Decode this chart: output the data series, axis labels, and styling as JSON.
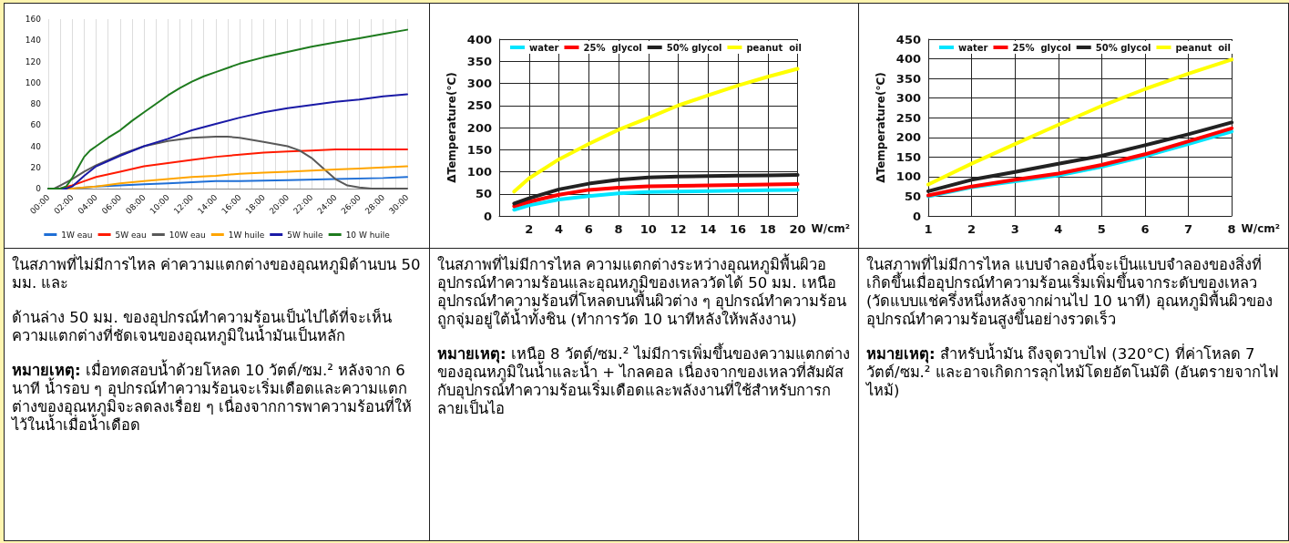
{
  "chart_data": [
    {
      "type": "line",
      "xlim": [
        0,
        30
      ],
      "xticks": [
        {
          "value": 0,
          "label": "00:00"
        },
        {
          "value": 1,
          "label": null
        },
        {
          "value": 2,
          "label": "02:00"
        },
        {
          "value": 3,
          "label": null
        },
        {
          "value": 4,
          "label": "04:00"
        },
        {
          "value": 5,
          "label": null
        },
        {
          "value": 6,
          "label": "06:00"
        },
        {
          "value": 7,
          "label": null
        },
        {
          "value": 8,
          "label": "08:00"
        },
        {
          "value": 9,
          "label": null
        },
        {
          "value": 10,
          "label": "10:00"
        },
        {
          "value": 11,
          "label": null
        },
        {
          "value": 12,
          "label": "12:00"
        },
        {
          "value": 13,
          "label": null
        },
        {
          "value": 14,
          "label": "14:00"
        },
        {
          "value": 15,
          "label": null
        },
        {
          "value": 16,
          "label": "16:00"
        },
        {
          "value": 17,
          "label": null
        },
        {
          "value": 18,
          "label": "18:00"
        },
        {
          "value": 19,
          "label": null
        },
        {
          "value": 20,
          "label": "20:00"
        },
        {
          "value": 21,
          "label": null
        },
        {
          "value": 22,
          "label": "22:00"
        },
        {
          "value": 23,
          "label": null
        },
        {
          "value": 24,
          "label": "24:00"
        },
        {
          "value": 25,
          "label": null
        },
        {
          "value": 26,
          "label": "26:00"
        },
        {
          "value": 27,
          "label": null
        },
        {
          "value": 28,
          "label": "28:00"
        },
        {
          "value": 29,
          "label": null
        },
        {
          "value": 30,
          "label": "30:00"
        }
      ],
      "ylim": [
        0,
        160
      ],
      "yticks": [
        0,
        20,
        40,
        60,
        80,
        100,
        120,
        140,
        160
      ],
      "grid": "x",
      "legend": "bottom",
      "marker": "none",
      "line_style": "solid",
      "series": [
        {
          "name": "1W eau",
          "color": "#1f6fd6",
          "x": [
            0,
            2,
            4,
            6,
            8,
            10,
            12,
            14,
            16,
            20,
            24,
            28,
            30
          ],
          "values": [
            0,
            0,
            2,
            3,
            4,
            5,
            6,
            7,
            7,
            8,
            9,
            10,
            11
          ]
        },
        {
          "name": "5W eau",
          "color": "#ff1a00",
          "x": [
            0,
            1,
            2,
            3,
            4,
            6,
            8,
            10,
            12,
            14,
            16,
            18,
            20,
            22,
            24,
            26,
            28,
            30
          ],
          "values": [
            0,
            0,
            3,
            7,
            11,
            16,
            21,
            24,
            27,
            30,
            32,
            34,
            35,
            36,
            37,
            37,
            37,
            37
          ]
        },
        {
          "name": "10W eau",
          "color": "#595959",
          "x": [
            0,
            0.5,
            1,
            2,
            3,
            4,
            5,
            6,
            8,
            10,
            12,
            14,
            15,
            16,
            18,
            20,
            21,
            22,
            23,
            24,
            25,
            26,
            27,
            30
          ],
          "values": [
            0,
            0,
            3,
            9,
            16,
            22,
            27,
            32,
            40,
            45,
            48,
            49,
            49,
            48,
            44,
            40,
            36,
            29,
            19,
            9,
            3,
            1,
            0,
            0
          ]
        },
        {
          "name": "1W huile",
          "color": "#ffa500",
          "x": [
            0,
            2,
            3,
            4,
            6,
            8,
            10,
            12,
            14,
            16,
            18,
            20,
            22,
            24,
            26,
            28,
            30
          ],
          "values": [
            0,
            0,
            1,
            2,
            5,
            7,
            9,
            11,
            12,
            14,
            15,
            16,
            17,
            18,
            19,
            20,
            21
          ]
        },
        {
          "name": "5W huile",
          "color": "#1a1aa6",
          "x": [
            0,
            1.5,
            2,
            3,
            4,
            5,
            6,
            8,
            10,
            12,
            14,
            16,
            18,
            20,
            22,
            24,
            26,
            28,
            30
          ],
          "values": [
            0,
            0,
            2,
            12,
            21,
            26,
            31,
            40,
            47,
            55,
            61,
            67,
            72,
            76,
            79,
            82,
            84,
            87,
            89
          ]
        },
        {
          "name": "10 W huile",
          "color": "#1e7b1e",
          "x": [
            0,
            1,
            1.5,
            2,
            2.5,
            3,
            3.5,
            4,
            5,
            6,
            7,
            8,
            9,
            10,
            11,
            12,
            13,
            14,
            16,
            18,
            20,
            22,
            24,
            26,
            28,
            30
          ],
          "values": [
            0,
            0,
            2,
            10,
            20,
            30,
            36,
            40,
            48,
            55,
            64,
            72,
            80,
            88,
            95,
            101,
            106,
            110,
            118,
            124,
            129,
            134,
            138,
            142,
            146,
            150
          ]
        }
      ],
      "annotations": [
        "ในสภาพที่ไม่มีการไหล ค่าความแตกต่างของอุณหภูมิด้านบน 50 มม. และ",
        "ด้านล่าง 50 มม. ของอุปกรณ์ทำความร้อนเป็นไปได้ที่จะเห็นความแตกต่างที่ชัดเจนของอุณหภูมิในน้ำมันเป็นหลัก",
        "หมายเหตุ: เมื่อทดสอบน้ำด้วยโหลด 10 วัตต์/ซม.² หลังจาก 6 นาที น้ำรอบ ๆ อุปกรณ์ทำความร้อนจะเริ่มเดือดและความแตกต่างของอุณหภูมิจะลดลงเรื่อย ๆ เนื่องจากการพาความร้อนที่ให้ไว้ในน้ำเมื่อน้ำเดือด"
      ]
    },
    {
      "type": "line",
      "xlabel": "W/cm²",
      "ylabel": "ΔTemperature(°C)",
      "xlim": [
        0,
        20
      ],
      "xticks": [
        2,
        4,
        6,
        8,
        10,
        12,
        14,
        16,
        18,
        20
      ],
      "ylim": [
        0,
        400
      ],
      "yticks": [
        0,
        50,
        100,
        150,
        200,
        250,
        300,
        350,
        400
      ],
      "grid": true,
      "legend": "top",
      "marker": "none",
      "line_style": "solid",
      "x": [
        1,
        2,
        4,
        6,
        8,
        10,
        12,
        14,
        16,
        18,
        20
      ],
      "series": [
        {
          "name": "water",
          "color": "#00e5ff",
          "values": [
            14,
            24,
            37,
            45,
            51,
            54,
            55,
            56,
            57,
            58,
            59
          ]
        },
        {
          "name": "25%  glycol",
          "color": "#ff0000",
          "values": [
            22,
            32,
            48,
            59,
            64,
            67,
            68,
            69,
            70,
            71,
            72
          ]
        },
        {
          "name": "50% glycol",
          "color": "#222222",
          "values": [
            28,
            40,
            60,
            73,
            82,
            87,
            89,
            90,
            91,
            92,
            93
          ]
        },
        {
          "name": "peanut  oil",
          "color": "#ffff00",
          "values": [
            55,
            85,
            128,
            163,
            195,
            222,
            250,
            273,
            295,
            315,
            333
          ]
        }
      ],
      "annotations": [
        "ในสภาพที่ไม่มีการไหล ความแตกต่างระหว่างอุณหภูมิพื้นผิวออุปกรณ์ทำความร้อนและอุณหภูมิของเหลววัดได้ 50 มม. เหนืออุปกรณ์ทำความร้อนที่โหลดบนพื้นผิวต่าง ๆ อุปกรณ์ทำความร้อนถูกจุ่มอยู่ใต้น้ำทั้งชิน (ทำการวัด 10 นาทีหลังให้พลังงาน)",
        "หมายเหตุ: เหนือ 8 วัตต์/ซม.² ไม่มีการเพิ่มขึ้นของความแตกต่างของอุณหภูมิในน้ำและน้ำ + ไกลคอล เนื่องจากของเหลวที่สัมผัสกับอุปกรณ์ทำความร้อนเริ่มเดือดและพลังงานที่ใช้สำหรับการกลายเป็นไอ"
      ]
    },
    {
      "type": "line",
      "xlabel": "W/cm²",
      "ylabel": "ΔTemperature(°C)",
      "xlim": [
        1,
        8
      ],
      "xticks": [
        1,
        2,
        3,
        4,
        5,
        6,
        7,
        8
      ],
      "ylim": [
        0,
        450
      ],
      "yticks": [
        0,
        50,
        100,
        150,
        200,
        250,
        300,
        350,
        400,
        450
      ],
      "grid": true,
      "legend": "top",
      "marker": "none",
      "line_style": "solid",
      "x": [
        1,
        2,
        3,
        4,
        5,
        6,
        7,
        8
      ],
      "series": [
        {
          "name": "water",
          "color": "#00e5ff",
          "values": [
            50,
            73,
            88,
            103,
            125,
            152,
            183,
            215
          ]
        },
        {
          "name": "25%  glycol",
          "color": "#ff0000",
          "values": [
            52,
            75,
            92,
            108,
            130,
            157,
            190,
            223
          ]
        },
        {
          "name": "50% glycol",
          "color": "#222222",
          "values": [
            63,
            92,
            112,
            133,
            153,
            180,
            208,
            238
          ]
        },
        {
          "name": "peanut  oil",
          "color": "#ffff00",
          "values": [
            80,
            133,
            183,
            232,
            280,
            323,
            362,
            398
          ]
        }
      ],
      "annotations": [
        "ในสภาพที่ไม่มีการไหล แบบจำลองนี้จะเป็นแบบจำลองของสิ่งที่เกิดขึ้นเมื่ออุปกรณ์ทำความร้อนเริ่มเพิ่มขึ้นจากระดับของเหลว (วัดแบบแช่ครึ่งหนึ่งหลังจากผ่านไป 10 นาที) อุณหภูมิพื้นผิวของอุปกรณ์ทำความร้อนสูงขึ้นอย่างรวดเร็ว",
        "หมายเหตุ: สำหรับน้ำมัน ถึงจุดวาบไฟ (320°C) ที่ค่าโหลด 7 วัตต์/ซม.² และอาจเกิดการลุกไหม้โดยอัตโนมัติ (อันตรายจากไฟไหม้)"
      ]
    }
  ]
}
